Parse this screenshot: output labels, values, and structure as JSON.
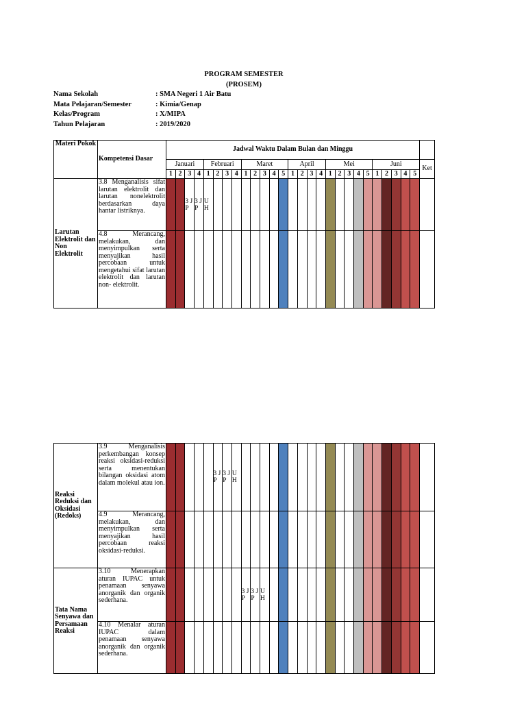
{
  "header": {
    "title": "PROGRAM SEMESTER",
    "subtitle": "(PROSEM)"
  },
  "info": [
    {
      "label": "Nama Sekolah",
      "value": ": SMA Negeri 1 Air Batu"
    },
    {
      "label": "Mata Pelajaran/Semester",
      "value": ": Kimia/Genap"
    },
    {
      "label": "Kelas/Program",
      "value": ": X/MIPA"
    },
    {
      "label": "Tahun Pelajaran",
      "value": " : 2019/2020"
    }
  ],
  "table_header": {
    "materi": "Materi Pokok",
    "kd": "Kompetensi Dasar",
    "jadwal": "Jadwal Waktu Dalam Bulan dan Minggu",
    "ket": "Ket",
    "months": [
      {
        "name": "Januari",
        "weeks": [
          1,
          2,
          3,
          4
        ]
      },
      {
        "name": "Februari",
        "weeks": [
          1,
          2,
          3,
          4
        ]
      },
      {
        "name": "Maret",
        "weeks": [
          1,
          2,
          3,
          4,
          5
        ]
      },
      {
        "name": "April",
        "weeks": [
          1,
          2,
          3,
          4
        ]
      },
      {
        "name": "Mei",
        "weeks": [
          1,
          2,
          3,
          4,
          5
        ]
      },
      {
        "name": "Juni",
        "weeks": [
          1,
          2,
          3,
          4,
          5
        ]
      }
    ]
  },
  "tables": [
    {
      "groups": [
        {
          "materi": "Larutan Elektrolit dan Non Elektrolit",
          "rows": [
            {
              "kd": "3.8 Menganalisis sifat larutan elektrolit dan larutan nonelektrolit berdasarkan daya hantar listriknya.",
              "cells": [
                null,
                null,
                "3 JP",
                "3 JP",
                "U H",
                null,
                null,
                null,
                null,
                null,
                null,
                null,
                null,
                null,
                null,
                null,
                null,
                null,
                null,
                null,
                null,
                null,
                null,
                null,
                null,
                null,
                null
              ]
            },
            {
              "kd": "4.8 Merancang, melakukan, dan menyimpulkan serta menyajikan hasil percobaan untuk mengetahui sifat larutan elektrolit dan larutan non- elektrolit.",
              "cells": null
            }
          ]
        }
      ]
    },
    {
      "groups": [
        {
          "materi": "Reaksi Reduksi dan Oksidasi (Redoks)",
          "rows": [
            {
              "kd": "3.9 Menganalisis perkembangan konsep reaksi oksidasi-reduksi serta menentukan bilangan oksidasi atom dalam molekul atau ion.",
              "cells": [
                null,
                null,
                null,
                null,
                null,
                "3 JP",
                "3 JP",
                "U H",
                null,
                null,
                null,
                null,
                null,
                null,
                null,
                null,
                null,
                null,
                null,
                null,
                null,
                null,
                null,
                null,
                null,
                null,
                null
              ]
            },
            {
              "kd": "4.9 Merancang, melakukan, dan menyimpulkan serta menyajikan hasil percobaan reaksi oksidasi-reduksi.",
              "cells": null
            }
          ]
        },
        {
          "materi": "Tata Nama Senyawa dan Persamaan Reaksi",
          "rows": [
            {
              "kd": "3.10 Menerapkan aturan IUPAC untuk penamaan senyawa anorganik dan organik sederhana.",
              "cells": [
                null,
                null,
                null,
                null,
                null,
                null,
                null,
                null,
                "3 JP",
                "3 JP",
                "U H",
                null,
                null,
                null,
                null,
                null,
                null,
                null,
                null,
                null,
                null,
                null,
                null,
                null,
                null,
                null,
                null
              ]
            },
            {
              "kd": "4.10 Menalar aturan IUPAC dalam penamaan senyawa anorganik dan organik sederhana.",
              "cells": null
            }
          ]
        }
      ]
    }
  ]
}
